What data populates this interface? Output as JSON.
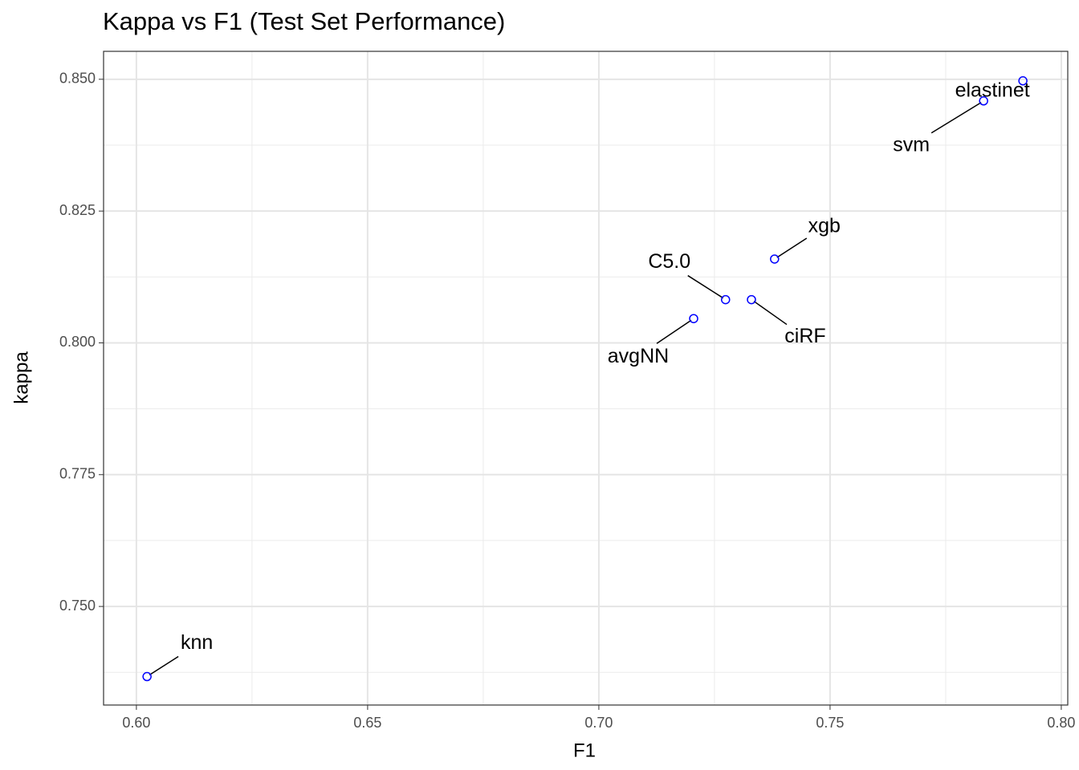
{
  "chart_data": {
    "type": "scatter",
    "title": "Kappa vs F1 (Test Set Performance)",
    "x_label": "F1",
    "y_label": "kappa",
    "labels": [
      "elastinet",
      "svm",
      "xgb",
      "C5.0",
      "ciRF",
      "avgNN",
      "knn"
    ],
    "x": [
      0.7917,
      0.7832,
      0.738,
      0.7274,
      0.733,
      0.7205,
      0.6023
    ],
    "values": [
      0.8497,
      0.8459,
      0.8159,
      0.8082,
      0.8082,
      0.8046,
      0.7367
    ],
    "color": "#0000ff",
    "xlim": [
      0.5929,
      0.8014
    ],
    "ylim": [
      0.7313,
      0.8553
    ],
    "xticks": [
      {
        "value": 0.6,
        "label": "0.60"
      },
      {
        "value": 0.65,
        "label": "0.65"
      },
      {
        "value": 0.7,
        "label": "0.70"
      },
      {
        "value": 0.75,
        "label": "0.75"
      },
      {
        "value": 0.8,
        "label": "0.80"
      }
    ],
    "yticks": [
      {
        "value": 0.75,
        "label": "0.750"
      },
      {
        "value": 0.775,
        "label": "0.775"
      },
      {
        "value": 0.8,
        "label": "0.800"
      },
      {
        "value": 0.825,
        "label": "0.825"
      },
      {
        "value": 0.85,
        "label": "0.850"
      }
    ],
    "xminor": [
      0.625,
      0.675,
      0.725,
      0.775
    ],
    "yminor": [
      0.7375,
      0.7625,
      0.7875,
      0.8125,
      0.8375
    ],
    "grid": true
  }
}
